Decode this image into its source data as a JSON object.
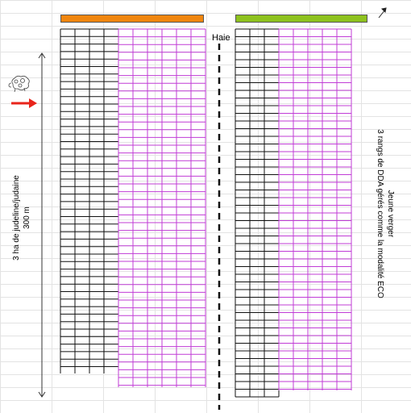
{
  "colors": {
    "left_bar": "#f0860f",
    "right_bar": "#8ec21e",
    "black_rows": "#111111",
    "magenta_rows": "#c03cd6",
    "arrow": "#e8251b",
    "grid": "#e3e3e3"
  },
  "labels": {
    "hedge": "Haie",
    "left_area": "3 ha de judeline/judaine",
    "left_distance": "300 m",
    "right_line1": "Jeune verger",
    "right_line2": "3 rangs de DDA gérés comme la modalité ECO"
  },
  "icons": {
    "north_arrow": "arrow-up-right-icon",
    "animal": "sheep-doodle-icon",
    "entry_arrow": "red-arrow-right-icon"
  }
}
